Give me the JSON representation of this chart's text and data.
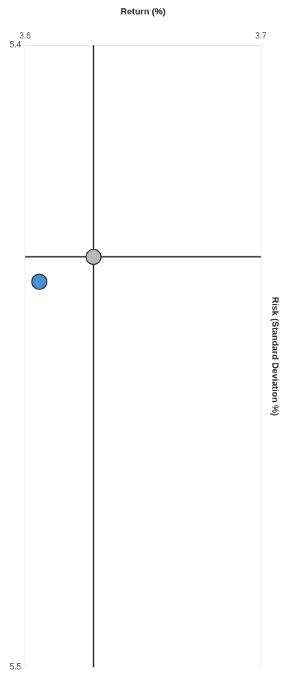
{
  "chart_data": {
    "type": "scatter",
    "xlabel": "Return (%)",
    "ylabel": "Risk (Standard Deviation %)",
    "xlim": [
      3.6,
      3.7
    ],
    "xticks": [
      3.6,
      3.7
    ],
    "ylim": [
      5.5,
      5.4
    ],
    "yticks": [
      5.4,
      5.5
    ],
    "grid": false,
    "legend": false,
    "marker": "circle",
    "series": [
      {
        "color": "#bdb8b8",
        "x": [
          3.629
        ],
        "values": [
          5.434
        ]
      },
      {
        "color": "#4a8fd4",
        "x": [
          3.606
        ],
        "values": [
          5.438
        ]
      }
    ],
    "ref_lines": [
      {
        "axis": "x",
        "value": 3.629,
        "color": "#111111"
      },
      {
        "axis": "y",
        "value": 5.434,
        "color": "#111111"
      }
    ]
  }
}
